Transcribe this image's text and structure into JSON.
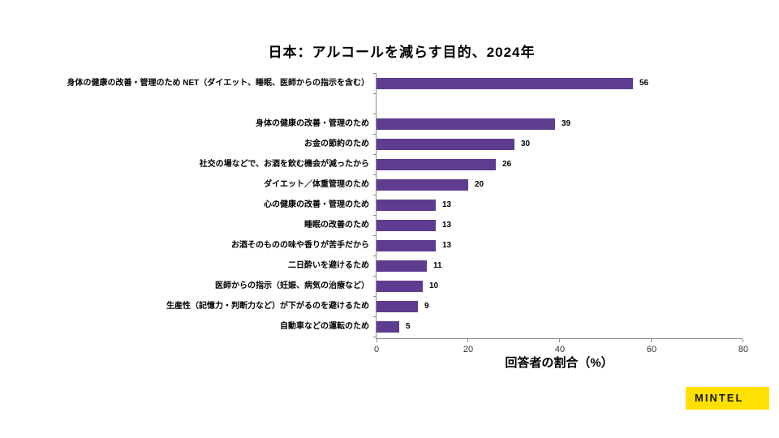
{
  "logo_text": "MINTEL",
  "colors": {
    "bar": "#5e3c8f",
    "axis": "#8c8c8c",
    "logo_background": "#ffe000",
    "logo_text": "#1a1a1a"
  },
  "chart_data": {
    "type": "bar",
    "orientation": "horizontal",
    "title": "日本：アルコールを減らす目的、2024年",
    "xlabel": "回答者の割合（%）",
    "xlim": [
      0,
      80
    ],
    "xticks": [
      0,
      20,
      40,
      60,
      80
    ],
    "grid": false,
    "legend": false,
    "categories": [
      "身体の健康の改善・管理のため NET（ダイエット、睡眠、医師からの指示を含む）",
      "身体の健康の改善・管理のため",
      "お金の節約のため",
      "社交の場などで、お酒を飲む機会が減ったから",
      "ダイエット／体重管理のため",
      "心の健康の改善・管理のため",
      "睡眠の改善のため",
      "お酒そのものの味や香りが苦手だから",
      "二日酔いを避けるため",
      "医師からの指示（妊娠、病気の治療など）",
      "生産性（記憶力・判断力など）が下がるのを避けるため",
      "自動車などの運転のため"
    ],
    "values": [
      56,
      39,
      30,
      26,
      20,
      13,
      13,
      13,
      11,
      10,
      9,
      5
    ],
    "gap_after_index": 0,
    "bar_value_labels_shown": true
  }
}
